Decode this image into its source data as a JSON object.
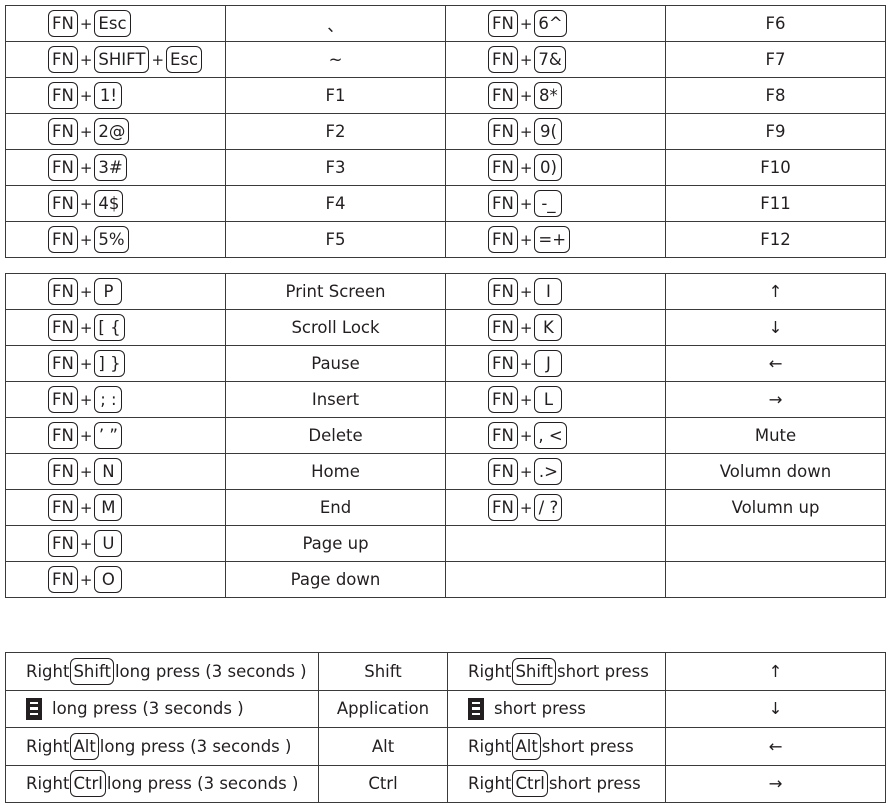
{
  "table1": [
    {
      "keys": [
        "FN",
        "Esc"
      ],
      "result": "、",
      "keys2": [
        "FN",
        "6^"
      ],
      "result2": "F6"
    },
    {
      "keys": [
        "FN",
        "SHIFT",
        "Esc"
      ],
      "result": "~",
      "keys2": [
        "FN",
        "7&"
      ],
      "result2": "F7"
    },
    {
      "keys": [
        "FN",
        "1!"
      ],
      "result": "F1",
      "keys2": [
        "FN",
        "8*"
      ],
      "result2": "F8"
    },
    {
      "keys": [
        "FN",
        "2@"
      ],
      "result": "F2",
      "keys2": [
        "FN",
        "9("
      ],
      "result2": "F9"
    },
    {
      "keys": [
        "FN",
        "3#"
      ],
      "result": "F3",
      "keys2": [
        "FN",
        "0)"
      ],
      "result2": "F10"
    },
    {
      "keys": [
        "FN",
        "4$"
      ],
      "result": "F4",
      "keys2": [
        "FN",
        "-_"
      ],
      "result2": "F11"
    },
    {
      "keys": [
        "FN",
        "5%"
      ],
      "result": "F5",
      "keys2": [
        "FN",
        "=+"
      ],
      "result2": "F12"
    }
  ],
  "table2": [
    {
      "keys": [
        "FN",
        "P"
      ],
      "result": "Print Screen",
      "keys2": [
        "FN",
        "I"
      ],
      "result2": "↑"
    },
    {
      "keys": [
        "FN",
        "[ {"
      ],
      "result": "Scroll Lock",
      "keys2": [
        "FN",
        "K"
      ],
      "result2": "↓"
    },
    {
      "keys": [
        "FN",
        "] }"
      ],
      "result": "Pause",
      "keys2": [
        "FN",
        "J"
      ],
      "result2": "←"
    },
    {
      "keys": [
        "FN",
        "; :"
      ],
      "result": "Insert",
      "keys2": [
        "FN",
        "L"
      ],
      "result2": "→"
    },
    {
      "keys": [
        "FN",
        "’ ”"
      ],
      "result": "Delete",
      "keys2": [
        "FN",
        ", <"
      ],
      "result2": "Mute"
    },
    {
      "keys": [
        "FN",
        "N"
      ],
      "result": "Home",
      "keys2": [
        "FN",
        ".>"
      ],
      "result2": "Volumn down"
    },
    {
      "keys": [
        "FN",
        "M"
      ],
      "result": "End",
      "keys2": [
        "FN",
        "/ ?"
      ],
      "result2": "Volumn up"
    },
    {
      "keys": [
        "FN",
        "U"
      ],
      "result": "Page up",
      "keys2": [],
      "result2": ""
    },
    {
      "keys": [
        "FN",
        "O"
      ],
      "result": "Page down",
      "keys2": [],
      "result2": ""
    }
  ],
  "table3": [
    {
      "prefix": "Right",
      "key": "Shift",
      "suffix": "long press (3 seconds )",
      "result": "Shift",
      "prefix2": "Right",
      "key2": "Shift",
      "suffix2": "short press",
      "result2": "↑"
    },
    {
      "prefix": "",
      "key": "",
      "icon": "menu-key-icon",
      "suffix": "long press (3 seconds )",
      "result": "Application",
      "prefix2": "",
      "key2": "",
      "icon2": "menu-key-icon",
      "suffix2": "short press",
      "result2": "↓"
    },
    {
      "prefix": "Right",
      "key": "Alt",
      "suffix": "long press (3 seconds )",
      "result": "Alt",
      "prefix2": "Right",
      "key2": "Alt",
      "suffix2": "short press",
      "result2": "←"
    },
    {
      "prefix": "Right",
      "key": "Ctrl",
      "suffix": "long press (3 seconds )",
      "result": "Ctrl",
      "prefix2": "Right",
      "key2": "Ctrl",
      "suffix2": "short press",
      "result2": "→"
    }
  ]
}
